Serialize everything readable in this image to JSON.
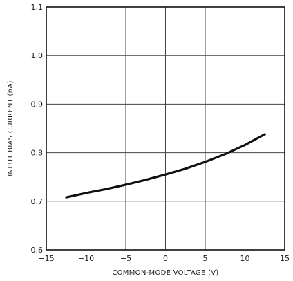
{
  "chart_data": {
    "type": "line",
    "title": "",
    "xlabel": "COMMON-MODE VOLTAGE (V)",
    "ylabel": "INPUT BIAS CURRENT (nA)",
    "xlim": [
      -15,
      15
    ],
    "ylim": [
      0.6,
      1.1
    ],
    "xticks": [
      -15,
      -10,
      -5,
      0,
      5,
      10,
      15
    ],
    "xtick_labels": [
      "−15",
      "−10",
      "−5",
      "0",
      "5",
      "10",
      "15"
    ],
    "yticks": [
      0.6,
      0.7,
      0.8,
      0.9,
      1.0,
      1.1
    ],
    "ytick_labels": [
      "0.6",
      "0.7",
      "0.8",
      "0.9",
      "1.0",
      "1.1"
    ],
    "grid": true,
    "series": [
      {
        "x": [
          -12.5,
          -10,
          -7.5,
          -5,
          -2.5,
          0,
          2.5,
          5,
          7.5,
          10,
          12.5
        ],
        "y": [
          0.708,
          0.717,
          0.725,
          0.734,
          0.744,
          0.755,
          0.767,
          0.781,
          0.797,
          0.816,
          0.838
        ]
      }
    ]
  }
}
